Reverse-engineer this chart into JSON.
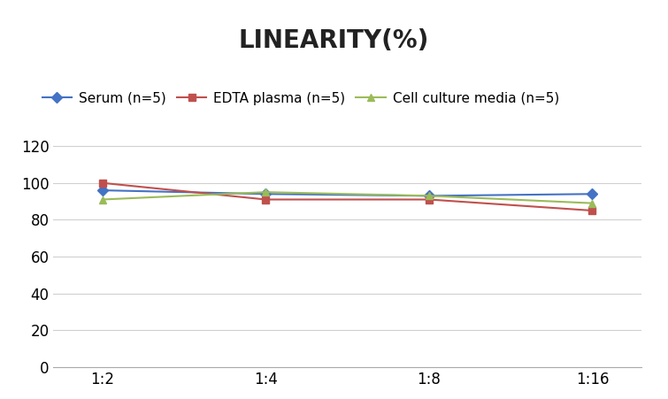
{
  "title": "LINEARITY(%)",
  "x_labels": [
    "1:2",
    "1:4",
    "1:8",
    "1:16"
  ],
  "x_positions": [
    0,
    1,
    2,
    3
  ],
  "series": [
    {
      "name": "Serum (n=5)",
      "values": [
        96,
        94,
        93,
        94
      ],
      "color": "#4472C4",
      "marker": "D"
    },
    {
      "name": "EDTA plasma (n=5)",
      "values": [
        100,
        91,
        91,
        85
      ],
      "color": "#C0504D",
      "marker": "s"
    },
    {
      "name": "Cell culture media (n=5)",
      "values": [
        91,
        95,
        93,
        89
      ],
      "color": "#9BBB59",
      "marker": "^"
    }
  ],
  "ylim": [
    0,
    130
  ],
  "yticks": [
    0,
    20,
    40,
    60,
    80,
    100,
    120
  ],
  "background_color": "#FFFFFF",
  "grid_color": "#D0D0D0",
  "title_fontsize": 20,
  "legend_fontsize": 11,
  "tick_fontsize": 12
}
